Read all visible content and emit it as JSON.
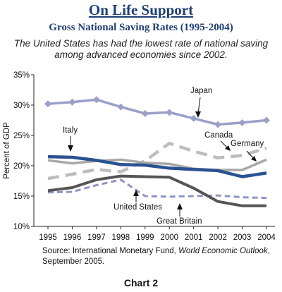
{
  "header": {
    "title": "On Life Support",
    "subtitle": "Gross National Saving Rates (1995-2004)",
    "caption": "The United States has had the lowest rate of national saving among advanced economies since 2002."
  },
  "footer": {
    "source_prefix": "Source: International Monetary Fund, ",
    "source_italic": "World Economic Outlook",
    "source_suffix": ", September 2005.",
    "chart_label": "Chart 2"
  },
  "chart_data": {
    "type": "line",
    "ylabel": "Percent of GDP",
    "xlabel": "",
    "ylim": [
      10,
      35
    ],
    "y_ticks": [
      "10%",
      "15%",
      "20%",
      "25%",
      "30%",
      "35%"
    ],
    "y_tick_values": [
      10,
      15,
      20,
      25,
      30,
      35
    ],
    "categories": [
      "1995",
      "1996",
      "1997",
      "1998",
      "1999",
      "2000",
      "2001",
      "2002",
      "2003",
      "2004"
    ],
    "grid": false,
    "series": [
      {
        "name": "Japan",
        "values": [
          30.2,
          30.5,
          30.9,
          29.7,
          28.6,
          28.8,
          27.8,
          26.8,
          27.1,
          27.5
        ],
        "color": "#9aa0c8",
        "style": "solid-markers"
      },
      {
        "name": "Canada",
        "values": [
          17.9,
          18.6,
          19.4,
          19.0,
          20.8,
          23.7,
          22.4,
          21.3,
          21.7,
          22.9
        ],
        "color": "#bdbdbd",
        "style": "dashed"
      },
      {
        "name": "Germany",
        "values": [
          20.9,
          20.4,
          20.8,
          21.0,
          20.5,
          20.3,
          19.5,
          19.3,
          19.3,
          21.0
        ],
        "color": "#a8a8a8",
        "style": "solid"
      },
      {
        "name": "Italy",
        "values": [
          21.5,
          21.4,
          20.9,
          20.2,
          20.1,
          19.6,
          19.4,
          19.2,
          18.2,
          18.8
        ],
        "color": "#2b5291",
        "style": "solid-thick"
      },
      {
        "name": "United States",
        "values": [
          15.9,
          16.4,
          17.7,
          18.3,
          18.2,
          18.1,
          16.3,
          14.1,
          13.4,
          13.4
        ],
        "color": "#555555",
        "style": "solid"
      },
      {
        "name": "Great Britain",
        "values": [
          15.6,
          15.7,
          16.8,
          17.7,
          15.0,
          14.9,
          15.0,
          15.1,
          14.8,
          14.7
        ],
        "color": "#8f95c2",
        "style": "dashed"
      }
    ]
  }
}
